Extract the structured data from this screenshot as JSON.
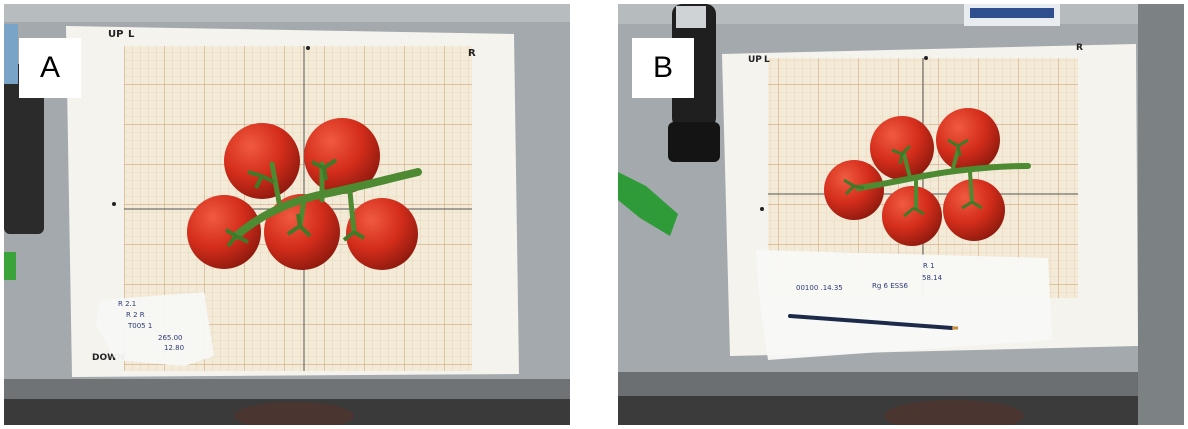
{
  "panels": [
    {
      "label": "A",
      "sheet_marks": {
        "up": "UP",
        "left": "L",
        "right": "R",
        "down": "DOWN"
      },
      "note_lines": [
        "R 2.1",
        "R 2 R",
        "T005 1",
        "265.00",
        "12.80"
      ]
    },
    {
      "label": "B",
      "sheet_marks": {
        "up": "UP",
        "left": "L",
        "right": "R"
      },
      "note_lines": [
        "R 1",
        "00100 .14.35",
        "Rg 6 ESS6",
        "58.14"
      ]
    }
  ],
  "colors": {
    "table": "#a2a8ac",
    "paper": "#f4f2ec",
    "graph_paper": "#f3ead8",
    "grid": "#d9b58c",
    "tomato": "#d7301f",
    "stem": "#4d8a32",
    "label_box": "#ffffff"
  }
}
